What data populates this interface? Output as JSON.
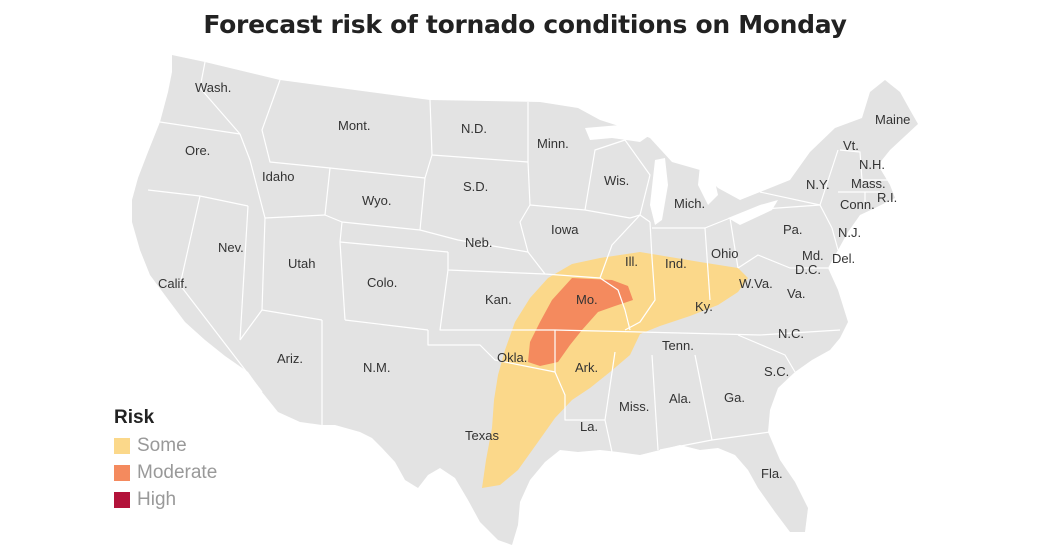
{
  "title": "Forecast risk of tornado conditions on Monday",
  "legend": {
    "title": "Risk",
    "items": [
      {
        "label": "Some",
        "color": "#fbd88a"
      },
      {
        "label": "Moderate",
        "color": "#f48a5e"
      },
      {
        "label": "High",
        "color": "#b3123a"
      }
    ]
  },
  "colors": {
    "land": "#e3e3e3",
    "borders": "#ffffff",
    "some": "#fbd88a",
    "moderate": "#f48a5e"
  },
  "states": [
    "Wash.",
    "Ore.",
    "Calif.",
    "Idaho",
    "Nev.",
    "Mont.",
    "Wyo.",
    "Utah",
    "Ariz.",
    "Colo.",
    "N.M.",
    "N.D.",
    "S.D.",
    "Neb.",
    "Kan.",
    "Okla.",
    "Texas",
    "Minn.",
    "Iowa",
    "Mo.",
    "Ark.",
    "La.",
    "Wis.",
    "Ill.",
    "Mich.",
    "Ind.",
    "Ohio",
    "Ky.",
    "Tenn.",
    "Miss.",
    "Ala.",
    "Ga.",
    "Fla.",
    "S.C.",
    "N.C.",
    "Va.",
    "W.Va.",
    "Pa.",
    "N.Y.",
    "Vt.",
    "N.H.",
    "Maine",
    "Mass.",
    "Conn.",
    "R.I.",
    "N.J.",
    "Del.",
    "Md.",
    "D.C."
  ]
}
